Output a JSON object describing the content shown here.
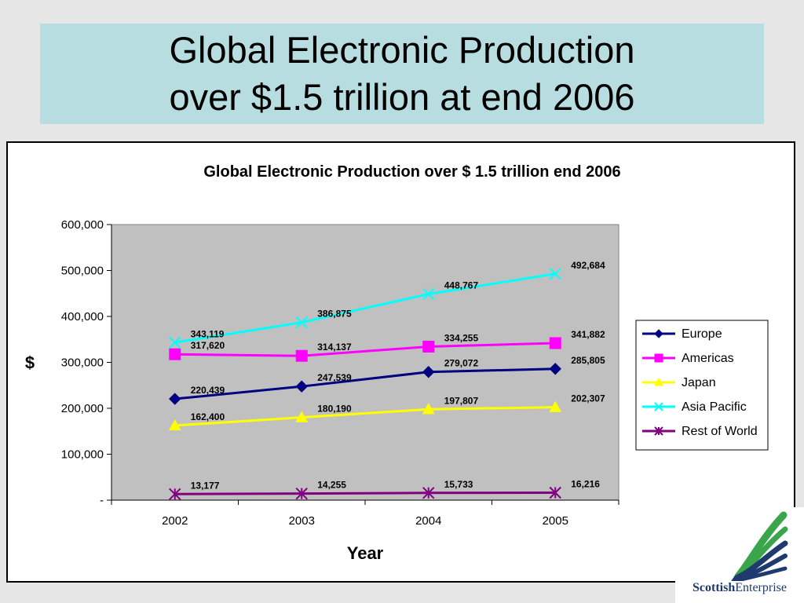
{
  "slide": {
    "title_line1": "Global Electronic Production",
    "title_line2": "over $1.5 trillion at end 2006"
  },
  "logo": {
    "name_part1": "Scottish",
    "name_part2": "Enterprise"
  },
  "colors": {
    "title_band": "#b7dde0",
    "plot_area": "#c0c0c0",
    "europe": "#000080",
    "americas": "#ff00ff",
    "japan": "#ffff00",
    "asia_pacific": "#00ffff",
    "rest_of_world": "#800080",
    "logo_green": "#3aa54a",
    "logo_blue": "#1e3a6e"
  },
  "chart_data": {
    "type": "line",
    "title": "Global Electronic Production  over $ 1.5 trillion end 2006",
    "xlabel": "Year",
    "ylabel": "$",
    "categories": [
      "2002",
      "2003",
      "2004",
      "2005"
    ],
    "ylim": [
      0,
      600000
    ],
    "y_ticks": [
      "-",
      "100,000",
      "200,000",
      "300,000",
      "400,000",
      "500,000",
      "600,000"
    ],
    "grid": false,
    "legend_position": "right",
    "series": [
      {
        "name": "Europe",
        "marker": "diamond",
        "color": "#000080",
        "values": [
          220439,
          247539,
          279072,
          285805
        ],
        "labels": [
          "220,439",
          "247,539",
          "279,072",
          "285,805"
        ]
      },
      {
        "name": "Americas",
        "marker": "square",
        "color": "#ff00ff",
        "values": [
          317620,
          314137,
          334255,
          341882
        ],
        "labels": [
          "317,620",
          "314,137",
          "334,255",
          "341,882"
        ]
      },
      {
        "name": "Japan",
        "marker": "triangle",
        "color": "#ffff00",
        "values": [
          162400,
          180190,
          197807,
          202307
        ],
        "labels": [
          "162,400",
          "180,190",
          "197,807",
          "202,307"
        ]
      },
      {
        "name": "Asia Pacific",
        "marker": "x",
        "color": "#00ffff",
        "values": [
          343119,
          386875,
          448767,
          492684
        ],
        "labels": [
          "343,119",
          "386,875",
          "448,767",
          "492,684"
        ]
      },
      {
        "name": "Rest of World",
        "marker": "star",
        "color": "#800080",
        "values": [
          13177,
          14255,
          15733,
          16216
        ],
        "labels": [
          "13,177",
          "14,255",
          "15,733",
          "16,216"
        ]
      }
    ]
  }
}
